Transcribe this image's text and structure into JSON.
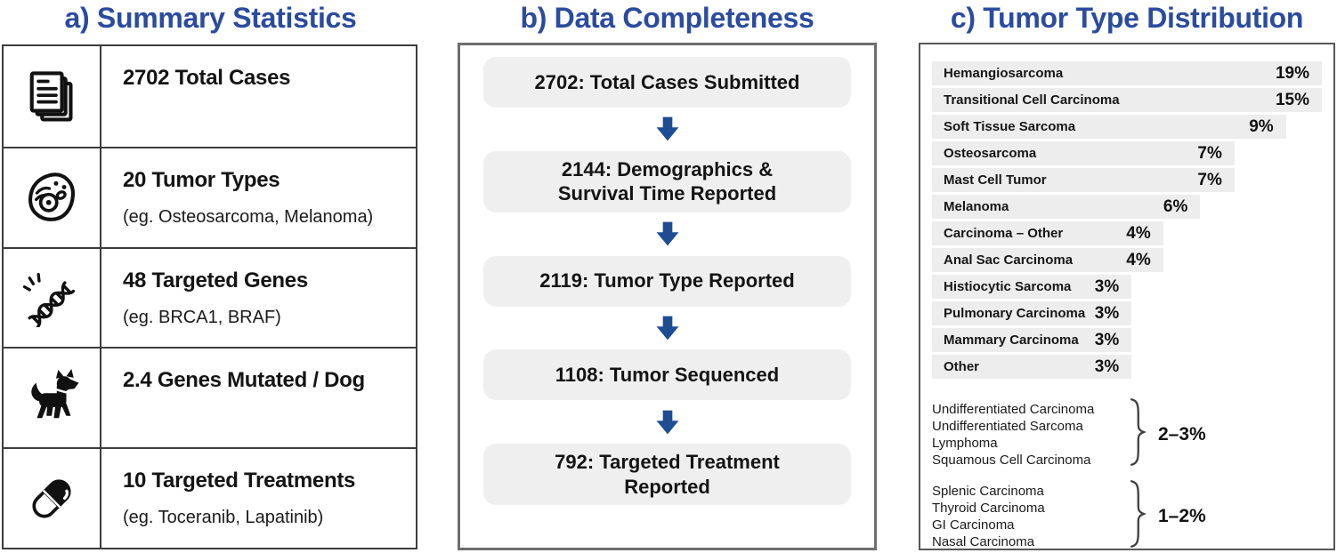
{
  "titles": {
    "a": "a) Summary Statistics",
    "b": "b) Data Completeness",
    "c": "c) Tumor Type Distribution"
  },
  "colors": {
    "title_blue": "#2b4ba0",
    "arrow_blue": "#1e4d94",
    "bar_fill": "#ededed",
    "step_fill": "#efefef",
    "border_dark": "#3c3c3c"
  },
  "panel_a": {
    "rows": [
      {
        "icon": "documents-icon",
        "label": "2702 Total Cases",
        "sublabel": ""
      },
      {
        "icon": "cell-icon",
        "label": "20 Tumor Types",
        "sublabel": "(eg. Osteosarcoma, Melanoma)"
      },
      {
        "icon": "dna-icon",
        "label": "48 Targeted Genes",
        "sublabel": "(eg. BRCA1, BRAF)"
      },
      {
        "icon": "dog-icon",
        "label": "2.4 Genes Mutated / Dog",
        "sublabel": ""
      },
      {
        "icon": "pill-icon",
        "label": "10 Targeted Treatments",
        "sublabel": "(eg. Toceranib, Lapatinib)"
      }
    ]
  },
  "panel_b": {
    "steps": [
      {
        "lines": [
          "2702: Total Cases Submitted",
          ""
        ]
      },
      {
        "lines": [
          "2144: Demographics &",
          "Survival Time Reported"
        ]
      },
      {
        "lines": [
          "2119: Tumor Type Reported",
          ""
        ]
      },
      {
        "lines": [
          "1108: Tumor Sequenced",
          ""
        ]
      },
      {
        "lines": [
          "792: Targeted Treatment",
          "Reported"
        ]
      }
    ]
  },
  "panel_c": {
    "bars": [
      {
        "label": "Hemangiosarcoma",
        "pct": "19%",
        "value": 19,
        "width_pct": 100
      },
      {
        "label": "Transitional Cell Carcinoma",
        "pct": "15%",
        "value": 15,
        "width_pct": 100
      },
      {
        "label": "Soft Tissue Sarcoma",
        "pct": "9%",
        "value": 9,
        "width_pct": 90.8
      },
      {
        "label": "Osteosarcoma",
        "pct": "7%",
        "value": 7,
        "width_pct": 77.6
      },
      {
        "label": "Mast Cell Tumor",
        "pct": "7%",
        "value": 7,
        "width_pct": 77.6
      },
      {
        "label": "Melanoma",
        "pct": "6%",
        "value": 6,
        "width_pct": 68.8
      },
      {
        "label": "Carcinoma – Other",
        "pct": "4%",
        "value": 4,
        "width_pct": 59.3
      },
      {
        "label": "Anal Sac Carcinoma",
        "pct": "4%",
        "value": 4,
        "width_pct": 59.3
      },
      {
        "label": "Histiocytic Sarcoma",
        "pct": "3%",
        "value": 3,
        "width_pct": 51.2
      },
      {
        "label": "Pulmonary Carcinoma",
        "pct": "3%",
        "value": 3,
        "width_pct": 51.2
      },
      {
        "label": "Mammary Carcinoma",
        "pct": "3%",
        "value": 3,
        "width_pct": 51.2
      },
      {
        "label": "Other",
        "pct": "3%",
        "value": 3,
        "width_pct": 51.2
      }
    ],
    "groups": [
      {
        "items": [
          "Undifferentiated Carcinoma",
          "Undifferentiated Sarcoma",
          "Lymphoma",
          "Squamous Cell Carcinoma"
        ],
        "pct": "2–3%"
      },
      {
        "items": [
          "Splenic Carcinoma",
          "Thyroid Carcinoma",
          "GI Carcinoma",
          "Nasal Carcinoma"
        ],
        "pct": "1–2%"
      }
    ]
  },
  "chart_data": [
    {
      "type": "table",
      "title": "a) Summary Statistics",
      "rows": [
        {
          "value": "2702",
          "label": "Total Cases"
        },
        {
          "value": "20",
          "label": "Tumor Types",
          "examples": "eg. Osteosarcoma, Melanoma"
        },
        {
          "value": "48",
          "label": "Targeted Genes",
          "examples": "eg. BRCA1, BRAF"
        },
        {
          "value": "2.4",
          "label": "Genes Mutated / Dog"
        },
        {
          "value": "10",
          "label": "Targeted Treatments",
          "examples": "eg. Toceranib, Lapatinib"
        }
      ]
    },
    {
      "type": "bar",
      "title": "b) Data Completeness (flow funnel)",
      "categories": [
        "Total Cases Submitted",
        "Demographics & Survival Time Reported",
        "Tumor Type Reported",
        "Tumor Sequenced",
        "Targeted Treatment Reported"
      ],
      "values": [
        2702,
        2144,
        2119,
        1108,
        792
      ]
    },
    {
      "type": "bar",
      "title": "c) Tumor Type Distribution",
      "unit": "%",
      "categories": [
        "Hemangiosarcoma",
        "Transitional Cell Carcinoma",
        "Soft Tissue Sarcoma",
        "Osteosarcoma",
        "Mast Cell Tumor",
        "Melanoma",
        "Carcinoma – Other",
        "Anal Sac Carcinoma",
        "Histiocytic Sarcoma",
        "Pulmonary Carcinoma",
        "Mammary Carcinoma",
        "Other"
      ],
      "values": [
        19,
        15,
        9,
        7,
        7,
        6,
        4,
        4,
        3,
        3,
        3,
        3
      ],
      "annotations": [
        {
          "labels": [
            "Undifferentiated Carcinoma",
            "Undifferentiated Sarcoma",
            "Lymphoma",
            "Squamous Cell Carcinoma"
          ],
          "range": "2–3%"
        },
        {
          "labels": [
            "Splenic Carcinoma",
            "Thyroid Carcinoma",
            "GI Carcinoma",
            "Nasal Carcinoma"
          ],
          "range": "1–2%"
        }
      ],
      "legend": false,
      "grid": false
    }
  ]
}
